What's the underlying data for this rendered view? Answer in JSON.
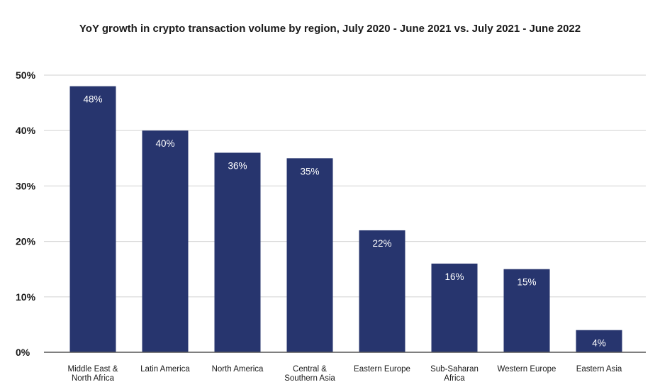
{
  "chart_data": {
    "type": "bar",
    "title": "YoY growth in crypto transaction volume by region, July 2020 - June 2021 vs. July 2021 - June 2022",
    "xlabel": "",
    "ylabel": "",
    "categories": [
      "Middle East & North Africa",
      "Latin America",
      "North America",
      "Central & Southern Asia",
      "Eastern Europe",
      "Sub-Saharan Africa",
      "Western Europe",
      "Eastern Asia"
    ],
    "category_lines": [
      [
        "Middle East &",
        "North Africa"
      ],
      [
        "Latin America"
      ],
      [
        "North America"
      ],
      [
        "Central &",
        "Southern Asia"
      ],
      [
        "Eastern Europe"
      ],
      [
        "Sub-Saharan",
        "Africa"
      ],
      [
        "Western Europe"
      ],
      [
        "Eastern Asia"
      ]
    ],
    "values": [
      48,
      40,
      36,
      35,
      22,
      16,
      15,
      4
    ],
    "data_labels": [
      "48%",
      "40%",
      "36%",
      "35%",
      "22%",
      "16%",
      "15%",
      "4%"
    ],
    "y_ticks": [
      0,
      10,
      20,
      30,
      40,
      50
    ],
    "y_tick_labels": [
      "0%",
      "10%",
      "20%",
      "30%",
      "40%",
      "50%"
    ],
    "ylim": [
      0,
      50
    ],
    "grid": true,
    "legend": "none",
    "colors": {
      "bar": "#27356e",
      "grid": "#d9d9d9",
      "axis": "#555555",
      "label": "#1a1a1a",
      "data_label": "#ffffff"
    }
  }
}
